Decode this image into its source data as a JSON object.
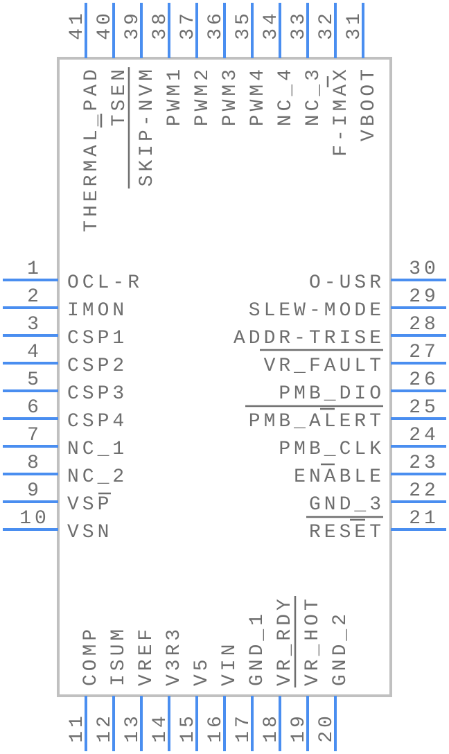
{
  "colors": {
    "pin": "#4a8ef0",
    "body_outline": "#c0c0c0",
    "text": "#6e6e6e"
  },
  "pins": {
    "left": [
      {
        "num": "1",
        "name": "OCL-R"
      },
      {
        "num": "2",
        "name": "IMON"
      },
      {
        "num": "3",
        "name": "CSP1"
      },
      {
        "num": "4",
        "name": "CSP2"
      },
      {
        "num": "5",
        "name": "CSP3"
      },
      {
        "num": "6",
        "name": "CSP4"
      },
      {
        "num": "7",
        "name": "NC_1"
      },
      {
        "num": "8",
        "name": "NC_2"
      },
      {
        "num": "9",
        "name": "VSP"
      },
      {
        "num": "10",
        "name": "VSN"
      }
    ],
    "right": [
      {
        "num": "30",
        "name": "O-USR"
      },
      {
        "num": "29",
        "name": "SLEW-MODE"
      },
      {
        "num": "28",
        "name": "ADDR-TRISE"
      },
      {
        "num": "27",
        "name": "VR_FAULT"
      },
      {
        "num": "26",
        "name": "PMB_DIO"
      },
      {
        "num": "25",
        "name": "PMB_ALERT"
      },
      {
        "num": "24",
        "name": "PMB_CLK"
      },
      {
        "num": "23",
        "name": "ENABLE"
      },
      {
        "num": "22",
        "name": "GND_3"
      },
      {
        "num": "21",
        "name": "RESET"
      }
    ],
    "top": [
      {
        "num": "41",
        "name": "THERMAL_PAD"
      },
      {
        "num": "40",
        "name": "TSEN"
      },
      {
        "num": "39",
        "name": "SKIP-NVM"
      },
      {
        "num": "38",
        "name": "PWM1"
      },
      {
        "num": "37",
        "name": "PWM2"
      },
      {
        "num": "36",
        "name": "PWM3"
      },
      {
        "num": "35",
        "name": "PWM4"
      },
      {
        "num": "34",
        "name": "NC_4"
      },
      {
        "num": "33",
        "name": "NC_3"
      },
      {
        "num": "32",
        "name": "F-IMAX"
      },
      {
        "num": "31",
        "name": "VBOOT"
      }
    ],
    "bottom": [
      {
        "num": "11",
        "name": "COMP"
      },
      {
        "num": "12",
        "name": "ISUM"
      },
      {
        "num": "13",
        "name": "VREF"
      },
      {
        "num": "14",
        "name": "V3R3"
      },
      {
        "num": "15",
        "name": "V5"
      },
      {
        "num": "16",
        "name": "VIN"
      },
      {
        "num": "17",
        "name": "GND_1"
      },
      {
        "num": "18",
        "name": "VR_RDY"
      },
      {
        "num": "19",
        "name": "VR_HOT"
      },
      {
        "num": "20",
        "name": "GND_2"
      }
    ]
  }
}
